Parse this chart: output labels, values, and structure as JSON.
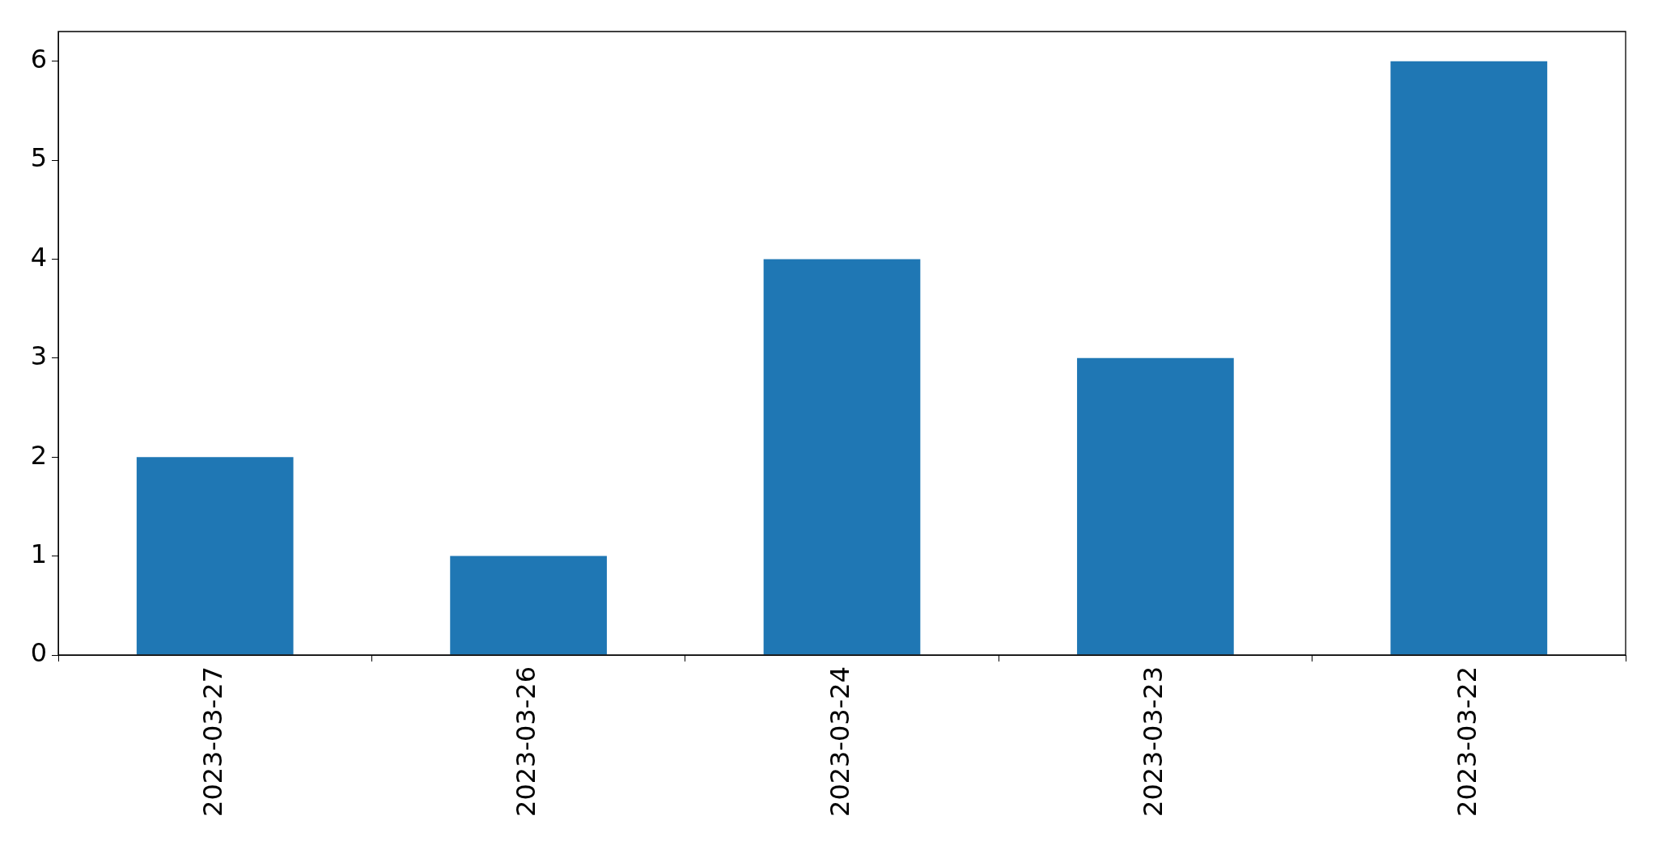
{
  "chart_data": {
    "type": "bar",
    "categories": [
      "2023-03-27",
      "2023-03-26",
      "2023-03-24",
      "2023-03-23",
      "2023-03-22"
    ],
    "values": [
      2,
      1,
      4,
      3,
      6
    ],
    "color": "#1f77b4",
    "ylim": [
      0,
      6.3
    ],
    "yticks": [
      0,
      1,
      2,
      3,
      4,
      5,
      6
    ],
    "grid": false,
    "legend": false
  }
}
